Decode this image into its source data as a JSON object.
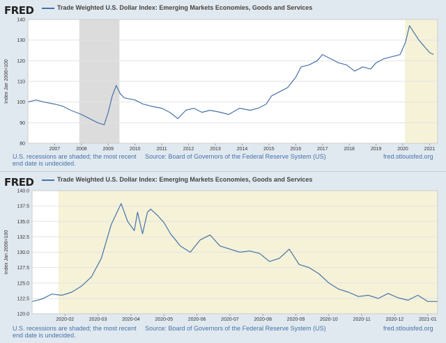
{
  "logo": "FRED",
  "colors": {
    "line": "#4572a7",
    "recession": "#dcdcdc",
    "highlight": "#f5f2d8",
    "text_link": "#4572a7"
  },
  "footer": {
    "note": "U.S. recessions are shaded; the most recent end date is undecided.",
    "source": "Source: Board of Governors of the Federal Reserve System (US)",
    "site": "fred.stlouisfed.org"
  },
  "chart_data": [
    {
      "type": "line",
      "title": "Trade Weighted U.S. Dollar Index: Emerging Markets Economies, Goods and Services",
      "ylabel": "Index Jan 2006=100",
      "xlabel": "",
      "xlim": [
        2006.0,
        2021.3
      ],
      "ylim": [
        80,
        140
      ],
      "yticks": [
        80,
        90,
        100,
        110,
        120,
        130,
        140
      ],
      "xticks": [
        "2007",
        "2008",
        "2009",
        "2010",
        "2011",
        "2012",
        "2013",
        "2014",
        "2015",
        "2016",
        "2017",
        "2018",
        "2019",
        "2020",
        "2021"
      ],
      "grid": true,
      "shaded": [
        {
          "kind": "recession",
          "from": 2007.92,
          "to": 2009.42
        },
        {
          "kind": "recession",
          "from": 2020.08,
          "to": 2021.3
        }
      ],
      "series": [
        {
          "x": [
            2006.0,
            2006.3,
            2006.6,
            2007.0,
            2007.3,
            2007.6,
            2008.0,
            2008.3,
            2008.6,
            2008.85,
            2009.0,
            2009.15,
            2009.3,
            2009.45,
            2009.6,
            2010.0,
            2010.3,
            2010.6,
            2011.0,
            2011.3,
            2011.6,
            2011.9,
            2012.2,
            2012.5,
            2012.8,
            2013.2,
            2013.5,
            2013.9,
            2014.3,
            2014.6,
            2014.9,
            2015.1,
            2015.4,
            2015.7,
            2016.0,
            2016.2,
            2016.5,
            2016.8,
            2017.0,
            2017.3,
            2017.6,
            2017.9,
            2018.2,
            2018.5,
            2018.8,
            2019.0,
            2019.3,
            2019.6,
            2019.9,
            2020.1,
            2020.25,
            2020.4,
            2020.6,
            2020.8,
            2021.0,
            2021.15
          ],
          "y": [
            100,
            101,
            100,
            99,
            98,
            96,
            94,
            92,
            90,
            89,
            95,
            103,
            108,
            104,
            102,
            101,
            99,
            98,
            97,
            95,
            92,
            96,
            97,
            95,
            96,
            95,
            94,
            97,
            96,
            97,
            99,
            103,
            105,
            107,
            112,
            117,
            118,
            120,
            123,
            121,
            119,
            118,
            115,
            117,
            116,
            119,
            121,
            122,
            123,
            129,
            137,
            134,
            130,
            127,
            124,
            123
          ]
        }
      ]
    },
    {
      "type": "line",
      "title": "Trade Weighted U.S. Dollar Index: Emerging Markets Economies, Goods and Services",
      "ylabel": "Index Jan 2006=100",
      "xlabel": "",
      "xlim": [
        0,
        12.3
      ],
      "ylim": [
        120.0,
        140.0
      ],
      "yticks": [
        120.0,
        122.5,
        125.0,
        127.5,
        130.0,
        132.5,
        135.0,
        137.5,
        140.0
      ],
      "ytick_labels": [
        "120.0",
        "122.5",
        "125.0",
        "127.5",
        "130.0",
        "132.5",
        "135.0",
        "137.5",
        "140.0"
      ],
      "xticks": [
        "2020-02",
        "2020-03",
        "2020-04",
        "2020-05",
        "2020-06",
        "2020-07",
        "2020-08",
        "2020-09",
        "2020-10",
        "2020-11",
        "2020-12",
        "2021-01"
      ],
      "grid": true,
      "shaded": [
        {
          "kind": "recession",
          "from": 0.8,
          "to": 12.3
        }
      ],
      "series": [
        {
          "x": [
            0,
            0.3,
            0.6,
            0.9,
            1.2,
            1.5,
            1.8,
            2.1,
            2.4,
            2.7,
            2.9,
            3.1,
            3.2,
            3.35,
            3.5,
            3.6,
            3.8,
            4.0,
            4.2,
            4.5,
            4.8,
            5.1,
            5.4,
            5.7,
            6.0,
            6.3,
            6.6,
            6.9,
            7.2,
            7.5,
            7.8,
            8.1,
            8.4,
            8.7,
            9.0,
            9.3,
            9.6,
            9.9,
            10.2,
            10.5,
            10.8,
            11.1,
            11.4,
            11.7,
            12.0,
            12.3
          ],
          "y": [
            122.0,
            122.4,
            123.2,
            123.0,
            123.5,
            124.5,
            126.0,
            129.0,
            134.5,
            137.9,
            135.0,
            133.5,
            136.5,
            133.0,
            136.5,
            137.0,
            136.0,
            134.8,
            133.0,
            131.0,
            130.0,
            132.0,
            132.8,
            131.0,
            130.5,
            130.0,
            130.2,
            129.8,
            128.5,
            129.0,
            130.5,
            128.0,
            127.5,
            126.5,
            125.0,
            124.0,
            123.5,
            122.8,
            123.0,
            122.5,
            123.3,
            122.6,
            122.2,
            123.0,
            122.0,
            122.0
          ]
        }
      ]
    }
  ]
}
